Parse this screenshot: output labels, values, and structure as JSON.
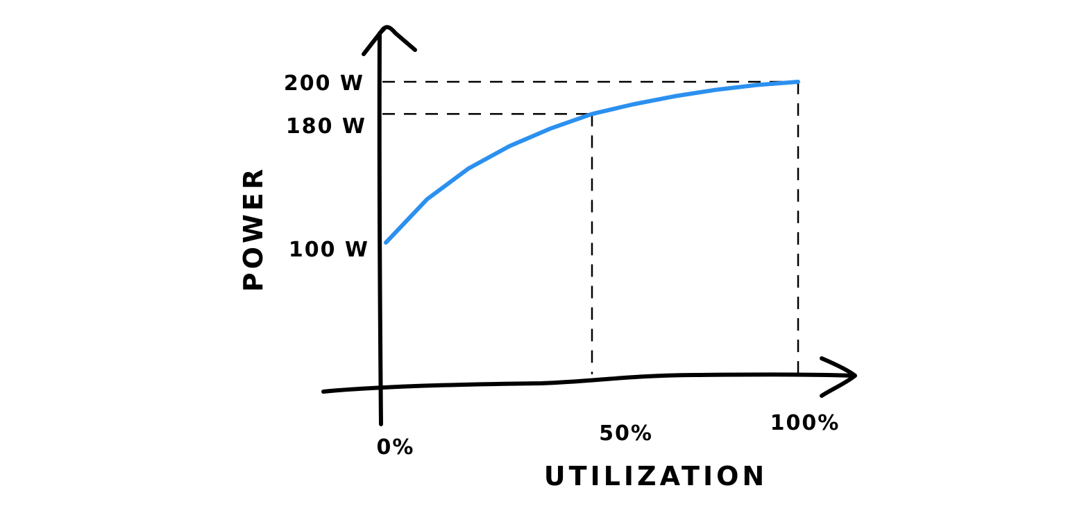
{
  "chart_data": {
    "type": "line",
    "xlabel": "UTILIZATION",
    "ylabel": "POWER",
    "x_tick_labels": [
      "0%",
      "50%",
      "100%"
    ],
    "y_tick_labels": [
      "100 W",
      "180 W",
      "200 W"
    ],
    "series": [
      {
        "x": [
          0,
          10,
          20,
          30,
          40,
          50,
          60,
          70,
          80,
          90,
          100
        ],
        "y": [
          100,
          127,
          146,
          160,
          171,
          180,
          186,
          191,
          195,
          198,
          200
        ],
        "color": "#2b90ef"
      }
    ],
    "guides": [
      {
        "x": 50,
        "y": 180
      },
      {
        "x": 100,
        "y": 200
      }
    ],
    "xlim": [
      0,
      100
    ],
    "grid": false,
    "legend": "none"
  }
}
